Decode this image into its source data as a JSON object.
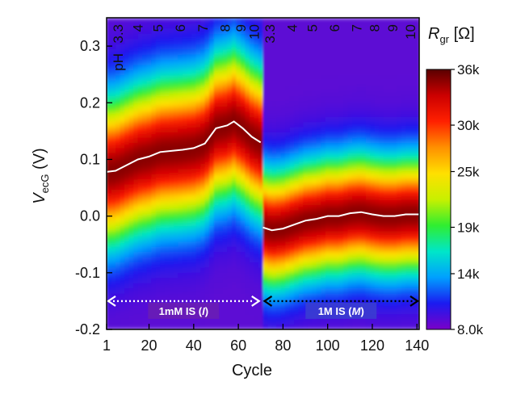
{
  "chart_data": {
    "type": "heatmap",
    "xlabel": "Cycle",
    "ylabel_main": "V",
    "ylabel_sub": "ecG",
    "ylabel_unit": " (V)",
    "xlim": [
      1,
      141
    ],
    "ylim": [
      -0.2,
      0.35
    ],
    "x_ticks": [
      {
        "value": 1,
        "label": "1"
      },
      {
        "value": 20,
        "label": "20"
      },
      {
        "value": 40,
        "label": "40"
      },
      {
        "value": 60,
        "label": "60"
      },
      {
        "value": 80,
        "label": "80"
      },
      {
        "value": 100,
        "label": "100"
      },
      {
        "value": 120,
        "label": "120"
      },
      {
        "value": 140,
        "label": "140"
      }
    ],
    "y_ticks": [
      {
        "value": -0.2,
        "label": "-0.2"
      },
      {
        "value": -0.1,
        "label": "-0.1"
      },
      {
        "value": 0.0,
        "label": "0.0"
      },
      {
        "value": 0.1,
        "label": "0.1"
      },
      {
        "value": 0.2,
        "label": "0.2"
      },
      {
        "value": 0.3,
        "label": "0.3"
      }
    ],
    "ph_prefix": "pH",
    "ph_labels_group1": [
      {
        "cycle": 6,
        "label": "3.3"
      },
      {
        "cycle": 15,
        "label": "4"
      },
      {
        "cycle": 24,
        "label": "5"
      },
      {
        "cycle": 34,
        "label": "6"
      },
      {
        "cycle": 44,
        "label": "7"
      },
      {
        "cycle": 54,
        "label": "8"
      },
      {
        "cycle": 61,
        "label": "9"
      },
      {
        "cycle": 67,
        "label": "10"
      }
    ],
    "ph_labels_group2": [
      {
        "cycle": 74,
        "label": "3.3"
      },
      {
        "cycle": 84,
        "label": "4"
      },
      {
        "cycle": 93,
        "label": "5"
      },
      {
        "cycle": 103,
        "label": "6"
      },
      {
        "cycle": 113,
        "label": "7"
      },
      {
        "cycle": 121,
        "label": "8"
      },
      {
        "cycle": 129,
        "label": "9"
      },
      {
        "cycle": 137,
        "label": "10"
      }
    ],
    "regions": [
      {
        "x_start": 1,
        "x_end": 70,
        "label": "1mM IS (",
        "label_italic": "I",
        "label_end": ")",
        "arrow_style": "dotted-white"
      },
      {
        "x_start": 71,
        "x_end": 141,
        "label": "1M IS (",
        "label_italic": "M",
        "label_end": ")",
        "arrow_style": "dotted-black"
      }
    ],
    "arrow_y": -0.15,
    "ridge_line": {
      "x": [
        1,
        5,
        10,
        15,
        20,
        25,
        30,
        35,
        40,
        45,
        50,
        55,
        58,
        62,
        66,
        70,
        71,
        75,
        80,
        85,
        90,
        95,
        100,
        105,
        110,
        115,
        120,
        125,
        130,
        135,
        141
      ],
      "y": [
        0.078,
        0.08,
        0.09,
        0.1,
        0.105,
        0.113,
        0.115,
        0.117,
        0.12,
        0.128,
        0.155,
        0.16,
        0.167,
        0.155,
        0.14,
        0.13,
        -0.02,
        -0.025,
        -0.022,
        -0.015,
        -0.008,
        -0.005,
        0.0,
        0.0,
        0.005,
        0.007,
        0.003,
        0.0,
        0.0,
        0.003,
        0.003
      ]
    },
    "colorbar": {
      "title_main": "R",
      "title_sub": "gr",
      "title_unit": " [Ω]",
      "min": 8000,
      "max": 36000,
      "ticks": [
        {
          "value": 8000,
          "label": "8.0k"
        },
        {
          "value": 14000,
          "label": "14k"
        },
        {
          "value": 19000,
          "label": "19k"
        },
        {
          "value": 25000,
          "label": "25k"
        },
        {
          "value": 30000,
          "label": "30k"
        },
        {
          "value": 36000,
          "label": "36k"
        }
      ],
      "colors": [
        "#7a00c8",
        "#1b1bf0",
        "#00a0ff",
        "#00e6c8",
        "#30ee30",
        "#c8f000",
        "#ffe000",
        "#ff9000",
        "#ff2000",
        "#cc0000",
        "#5a0000"
      ]
    }
  }
}
